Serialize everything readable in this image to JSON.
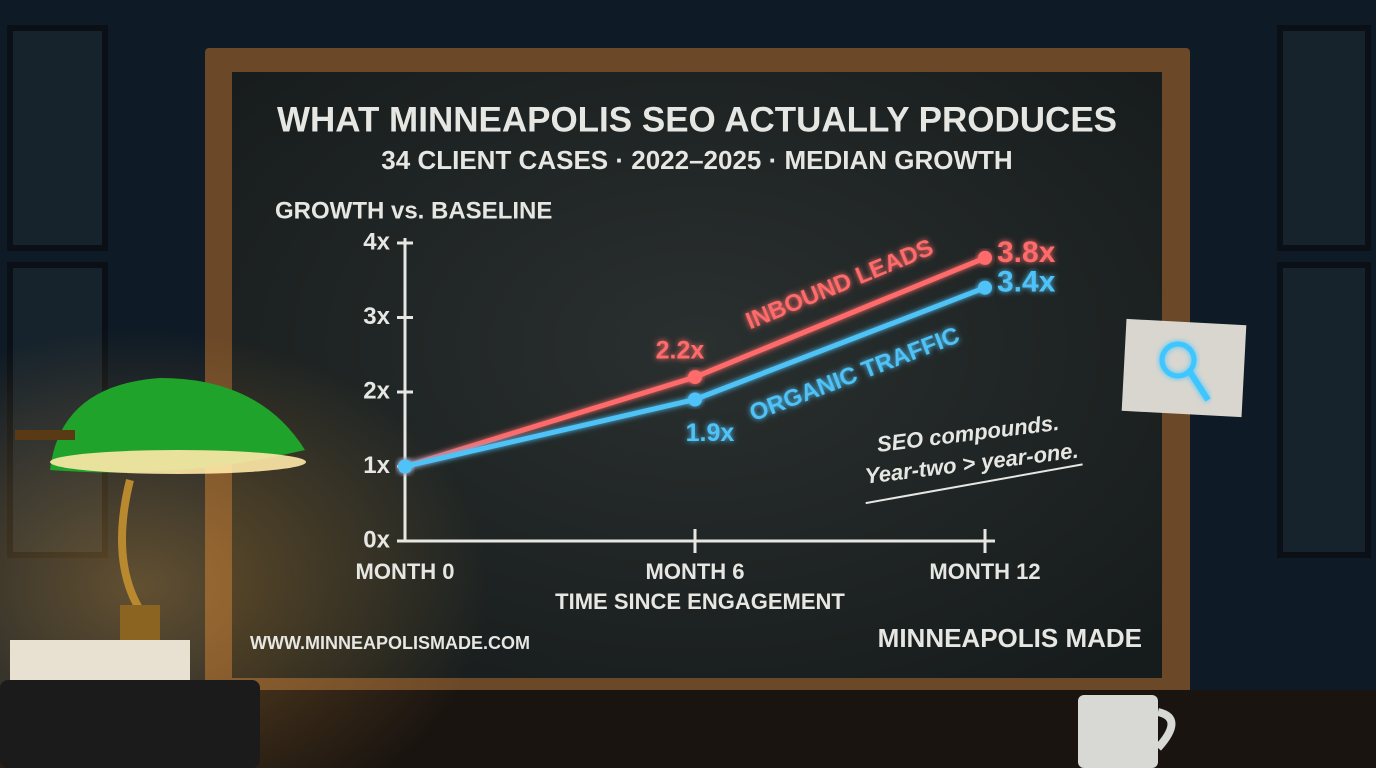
{
  "chart_data": {
    "type": "line",
    "title": "WHAT MINNEAPOLIS SEO ACTUALLY PRODUCES",
    "subtitle": "34 CLIENT CASES · 2022–2025 · MEDIAN GROWTH",
    "y_label": "GROWTH vs. BASELINE",
    "x_label": "TIME SINCE ENGAGEMENT",
    "categories": [
      "MONTH 0",
      "MONTH 6",
      "MONTH 12"
    ],
    "series": [
      {
        "name": "INBOUND LEADS",
        "color": "#ff6b6b",
        "values": [
          1,
          2.2,
          3.8
        ],
        "value_labels": [
          null,
          "2.2x",
          "3.8x"
        ]
      },
      {
        "name": "ORGANIC TRAFFIC",
        "color": "#4fc3f7",
        "values": [
          1,
          1.9,
          3.4
        ],
        "value_labels": [
          null,
          "1.9x",
          "3.4x"
        ]
      }
    ],
    "ylim": [
      0,
      4
    ],
    "yticks": [
      {
        "value": 0,
        "label": "0x"
      },
      {
        "value": 1,
        "label": "1x"
      },
      {
        "value": 2,
        "label": "2x"
      },
      {
        "value": 3,
        "label": "3x"
      },
      {
        "value": 4,
        "label": "4x"
      }
    ],
    "grid": false,
    "annotation": [
      "SEO compounds.",
      "Year-two > year-one."
    ],
    "footer_left": "WWW.MINNEAPOLISMADE.COM",
    "footer_right": "MINNEAPOLIS MADE"
  }
}
